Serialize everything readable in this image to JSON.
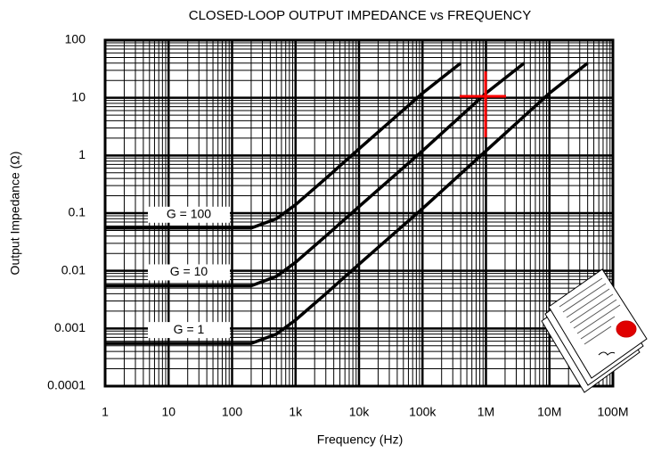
{
  "chart_data": {
    "type": "line",
    "title": "CLOSED-LOOP OUTPUT IMPEDANCE vs FREQUENCY",
    "x_label": "Frequency (Hz)",
    "y_label": "Output Impedance (Ω)",
    "log_x": true,
    "log_y": true,
    "grid": true,
    "xlim": [
      1,
      100000000
    ],
    "ylim": [
      0.0001,
      100
    ],
    "xticks": [
      1,
      10,
      100,
      {
        "value": 1000,
        "label": "1k"
      },
      {
        "value": 10000,
        "label": "10k"
      },
      {
        "value": 100000,
        "label": "100k"
      },
      {
        "value": 1000000,
        "label": "1M"
      },
      {
        "value": 10000000,
        "label": "10M"
      },
      {
        "value": 100000000,
        "label": "100M"
      }
    ],
    "yticks": [
      100,
      10,
      1,
      0.1,
      0.01,
      0.001,
      0.0001
    ],
    "series": [
      {
        "name": "G = 100",
        "color": "#000000",
        "x": [
          1,
          200,
          500,
          1000,
          3000,
          10000,
          100000,
          400000
        ],
        "values": [
          0.055,
          0.055,
          0.08,
          0.14,
          0.4,
          1.3,
          12,
          40
        ]
      },
      {
        "name": "G = 10",
        "color": "#000000",
        "x": [
          1,
          200,
          500,
          1000,
          3000,
          10000,
          100000,
          1000000,
          4000000
        ],
        "values": [
          0.0055,
          0.0055,
          0.008,
          0.014,
          0.04,
          0.13,
          1.2,
          12,
          40
        ]
      },
      {
        "name": "G = 1",
        "color": "#000000",
        "x": [
          1,
          200,
          500,
          1000,
          3000,
          10000,
          100000,
          1000000,
          10000000,
          40000000
        ],
        "values": [
          0.00055,
          0.00055,
          0.0008,
          0.0014,
          0.004,
          0.013,
          0.12,
          1.2,
          12,
          40
        ]
      }
    ]
  }
}
